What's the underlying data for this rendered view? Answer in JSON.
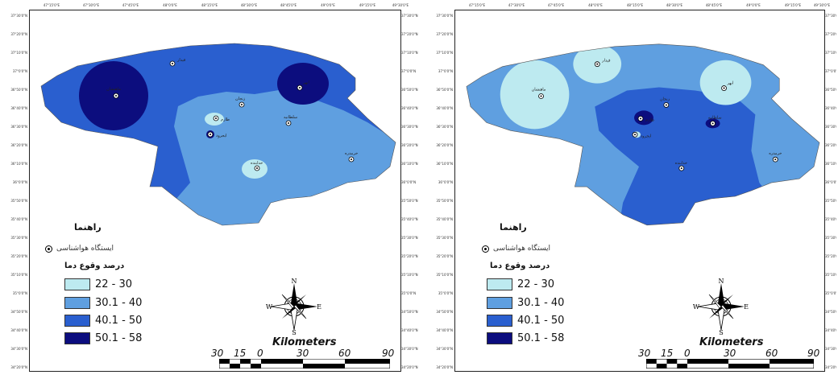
{
  "colors": {
    "class1": "#bdeaf0",
    "class2": "#5f9fe0",
    "class3": "#2a5fcf",
    "class4": "#0c0d7e"
  },
  "longitude_ticks": [
    "47°15'0\"E",
    "47°30'0\"E",
    "47°45'0\"E",
    "48°0'0\"E",
    "48°15'0\"E",
    "48°30'0\"E",
    "48°45'0\"E",
    "49°0'0\"E",
    "49°15'0\"E",
    "49°30'0\"E"
  ],
  "latitude_ticks": [
    "37°30'0\"N",
    "37°20'0\"N",
    "37°10'0\"N",
    "37°0'0\"N",
    "36°50'0\"N",
    "36°40'0\"N",
    "36°30'0\"N",
    "36°20'0\"N",
    "36°10'0\"N",
    "36°0'0\"N",
    "35°50'0\"N",
    "35°40'0\"N",
    "35°30'0\"N",
    "35°20'0\"N",
    "35°10'0\"N",
    "35°0'0\"N",
    "34°50'0\"N",
    "34°40'0\"N",
    "34°30'0\"N",
    "34°20'0\"N"
  ],
  "maps": [
    {
      "legend": {
        "title": "راهنما",
        "station_label": "ایستگاه هواشناسی",
        "class_title": "درصد وقوع دما",
        "classes": [
          {
            "range": "22 - 30",
            "color": "#bdeaf0"
          },
          {
            "range": "30.1 - 40",
            "color": "#5f9fe0"
          },
          {
            "range": "40.1 - 50",
            "color": "#2a5fcf"
          },
          {
            "range": "50.1 - 58",
            "color": "#0c0d7e"
          }
        ]
      },
      "stations": [
        "قیدار",
        "خرمدره",
        "ماهنشان",
        "ابهر",
        "زنجان",
        "طارم",
        "ایجرود",
        "سلطانیه",
        "خدابنده"
      ],
      "compass": {
        "n": "N",
        "e": "E",
        "s": "S",
        "w": "W"
      },
      "scale": {
        "title": "Kilometers",
        "labels": [
          "30",
          "15",
          "0",
          "30",
          "60",
          "90"
        ]
      }
    },
    {
      "legend": {
        "title": "راهنما",
        "station_label": "ایستگاه هواشناسی",
        "class_title": "درصد وقوع دما",
        "classes": [
          {
            "range": "22 - 30",
            "color": "#bdeaf0"
          },
          {
            "range": "30.1 - 40",
            "color": "#5f9fe0"
          },
          {
            "range": "40.1 - 50",
            "color": "#2a5fcf"
          },
          {
            "range": "50.1 - 58",
            "color": "#0c0d7e"
          }
        ]
      },
      "stations": [
        "قیدار",
        "خرمدره",
        "ماهنشان",
        "ابهر",
        "زنجان",
        "طارم",
        "ایجرود",
        "سلطانیه",
        "خدابنده"
      ],
      "compass": {
        "n": "N",
        "e": "E",
        "s": "S",
        "w": "W"
      },
      "scale": {
        "title": "Kilometers",
        "labels": [
          "30",
          "15",
          "0",
          "30",
          "60",
          "90"
        ]
      }
    }
  ]
}
